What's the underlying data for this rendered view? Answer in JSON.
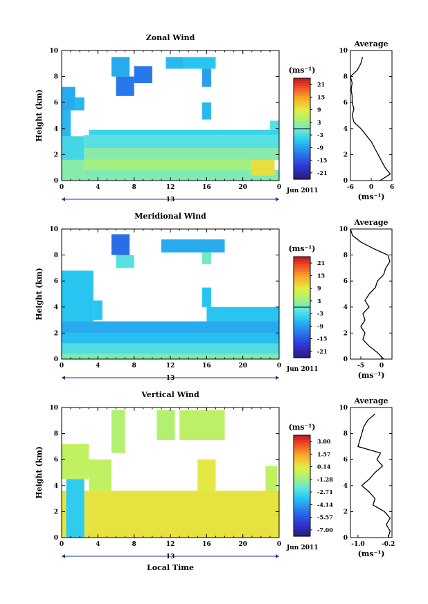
{
  "figure": {
    "date_label": "Jun 2011",
    "day_label": "13",
    "x_title": "Local Time",
    "y_title": "Height (km)",
    "avg_title": "Average",
    "unit_label": "(ms⁻¹)"
  },
  "chart_data": [
    {
      "type": "heatmap",
      "title": "Zonal Wind",
      "xlabel": "",
      "ylabel": "Height (km)",
      "x_ticks": [
        "0",
        "4",
        "8",
        "12",
        "16",
        "20",
        "0"
      ],
      "x_range": [
        0,
        24
      ],
      "y_ticks": [
        "0",
        "2",
        "4",
        "6",
        "8",
        "10"
      ],
      "y_range": [
        0,
        10
      ],
      "colorbar": {
        "label": "(ms⁻¹)",
        "ticks": [
          "21",
          "15",
          "9",
          "3",
          "-3",
          "-9",
          "-15",
          "-21"
        ],
        "range": [
          -24,
          24
        ]
      },
      "regions": [
        {
          "x0": 0.0,
          "x1": 2.5,
          "y0": 0.0,
          "y1": 1.6,
          "v": 1.5
        },
        {
          "x0": 0.0,
          "x1": 2.5,
          "y0": 1.6,
          "y1": 3.4,
          "v": -3.5
        },
        {
          "x0": 0.0,
          "x1": 1.0,
          "y0": 3.4,
          "y1": 5.4,
          "v": -7
        },
        {
          "x0": 0.0,
          "x1": 1.5,
          "y0": 5.4,
          "y1": 7.2,
          "v": -8
        },
        {
          "x0": 1.5,
          "x1": 2.5,
          "y0": 5.4,
          "y1": 6.4,
          "v": -7
        },
        {
          "x0": 2.5,
          "x1": 24.0,
          "y0": 0.0,
          "y1": 0.8,
          "v": 1
        },
        {
          "x0": 2.5,
          "x1": 21.0,
          "y0": 0.8,
          "y1": 1.6,
          "v": 3.5
        },
        {
          "x0": 21.0,
          "x1": 23.5,
          "y0": 0.4,
          "y1": 1.8,
          "v": 10
        },
        {
          "x0": 2.5,
          "x1": 24.0,
          "y0": 1.6,
          "y1": 2.5,
          "v": 1.5
        },
        {
          "x0": 2.5,
          "x1": 24.0,
          "y0": 2.5,
          "y1": 3.5,
          "v": -2
        },
        {
          "x0": 3.0,
          "x1": 24.0,
          "y0": 3.5,
          "y1": 3.9,
          "v": -4
        },
        {
          "x0": 23.0,
          "x1": 24.0,
          "y0": 3.9,
          "y1": 4.6,
          "v": -2
        },
        {
          "x0": 15.5,
          "x1": 16.5,
          "y0": 4.7,
          "y1": 6.0,
          "v": -7
        },
        {
          "x0": 5.5,
          "x1": 7.5,
          "y0": 8.0,
          "y1": 9.5,
          "v": -8
        },
        {
          "x0": 6.0,
          "x1": 8.0,
          "y0": 6.5,
          "y1": 8.0,
          "v": -12
        },
        {
          "x0": 8.0,
          "x1": 10.0,
          "y0": 7.5,
          "y1": 8.8,
          "v": -12
        },
        {
          "x0": 11.5,
          "x1": 13.5,
          "y0": 8.6,
          "y1": 9.5,
          "v": -7
        },
        {
          "x0": 13.5,
          "x1": 17.0,
          "y0": 8.6,
          "y1": 9.5,
          "v": -6
        },
        {
          "x0": 15.5,
          "x1": 16.5,
          "y0": 7.2,
          "y1": 8.6,
          "v": -9
        }
      ],
      "avg_profile": {
        "x_ticks": [
          "-6",
          "0",
          "6"
        ],
        "x_range": [
          -6,
          6
        ],
        "heights": [
          0.0,
          0.5,
          1.0,
          1.5,
          2.0,
          2.5,
          3.0,
          3.5,
          4.0,
          4.5,
          5.0,
          5.5,
          6.0,
          6.5,
          7.0,
          7.5,
          8.0,
          8.5,
          9.0,
          9.5
        ],
        "values": [
          2.5,
          5.5,
          4.0,
          3.0,
          2.0,
          1.0,
          0.0,
          -1.5,
          -3.0,
          -5.0,
          -5.5,
          -5.0,
          -5.5,
          -5.5,
          -5.8,
          -5.5,
          -6.0,
          -4.0,
          -3.0,
          -2.5
        ]
      }
    },
    {
      "type": "heatmap",
      "title": "Meridional Wind",
      "xlabel": "",
      "ylabel": "Height (km)",
      "x_ticks": [
        "0",
        "4",
        "8",
        "12",
        "16",
        "20",
        "0"
      ],
      "x_range": [
        0,
        24
      ],
      "y_ticks": [
        "0",
        "2",
        "4",
        "6",
        "8",
        "10"
      ],
      "y_range": [
        0,
        10
      ],
      "colorbar": {
        "label": "(ms⁻¹)",
        "ticks": [
          "21",
          "15",
          "9",
          "3",
          "-3",
          "-9",
          "-15",
          "-21"
        ],
        "range": [
          -24,
          24
        ]
      },
      "regions": [
        {
          "x0": 0.0,
          "x1": 24.0,
          "y0": 0.0,
          "y1": 0.4,
          "v": 1
        },
        {
          "x0": 0.0,
          "x1": 24.0,
          "y0": 0.4,
          "y1": 1.2,
          "v": -2.5
        },
        {
          "x0": 0.0,
          "x1": 24.0,
          "y0": 1.2,
          "y1": 2.0,
          "v": -6.5
        },
        {
          "x0": 0.0,
          "x1": 24.0,
          "y0": 2.0,
          "y1": 2.9,
          "v": -8
        },
        {
          "x0": 0.0,
          "x1": 3.5,
          "y0": 2.9,
          "y1": 6.8,
          "v": -6
        },
        {
          "x0": 3.5,
          "x1": 4.5,
          "y0": 3.0,
          "y1": 4.5,
          "v": -6
        },
        {
          "x0": 16.0,
          "x1": 24.0,
          "y0": 2.9,
          "y1": 4.0,
          "v": -6
        },
        {
          "x0": 15.5,
          "x1": 16.5,
          "y0": 4.0,
          "y1": 5.5,
          "v": -6
        },
        {
          "x0": 5.5,
          "x1": 7.5,
          "y0": 8.0,
          "y1": 9.6,
          "v": -13
        },
        {
          "x0": 6.0,
          "x1": 8.0,
          "y0": 7.0,
          "y1": 8.0,
          "v": -2
        },
        {
          "x0": 11.0,
          "x1": 18.0,
          "y0": 8.2,
          "y1": 9.2,
          "v": -8
        },
        {
          "x0": 15.5,
          "x1": 16.5,
          "y0": 7.3,
          "y1": 8.2,
          "v": 0
        }
      ],
      "avg_profile": {
        "x_ticks": [
          "-5",
          "0"
        ],
        "x_range": [
          -7.5,
          2.5
        ],
        "heights": [
          0.0,
          0.5,
          1.0,
          1.5,
          2.0,
          2.5,
          3.0,
          3.5,
          4.0,
          4.5,
          5.0,
          5.5,
          6.0,
          6.5,
          7.0,
          7.5,
          8.0,
          8.5,
          9.0,
          9.5,
          10.0
        ],
        "values": [
          0.5,
          -1.0,
          -3.0,
          -4.5,
          -4.0,
          -5.0,
          -4.0,
          -4.5,
          -3.0,
          -4.0,
          -3.0,
          -1.5,
          -1.0,
          0.5,
          1.0,
          2.0,
          1.5,
          -2.0,
          -5.0,
          -7.0,
          -7.5
        ]
      }
    },
    {
      "type": "heatmap",
      "title": "Vertical Wind",
      "xlabel": "Local Time",
      "ylabel": "Height (km)",
      "x_ticks": [
        "0",
        "4",
        "8",
        "12",
        "16",
        "20",
        "0"
      ],
      "x_range": [
        0,
        24
      ],
      "y_ticks": [
        "0",
        "2",
        "4",
        "6",
        "8",
        "10"
      ],
      "y_range": [
        0,
        10
      ],
      "colorbar": {
        "label": "(ms⁻¹)",
        "ticks": [
          "3.00",
          "1.57",
          "0.14",
          "-1.28",
          "-2.71",
          "-4.14",
          "-5.57",
          "-7.00"
        ],
        "range": [
          -7.7,
          3.7
        ]
      },
      "regions": [
        {
          "x0": 0.0,
          "x1": 24.0,
          "y0": 0.0,
          "y1": 3.6,
          "v": 0.3
        },
        {
          "x0": 0.5,
          "x1": 2.5,
          "y0": 0.0,
          "y1": 4.5,
          "v": -3.2
        },
        {
          "x0": 0.0,
          "x1": 3.0,
          "y0": 4.5,
          "y1": 7.2,
          "v": -0.6
        },
        {
          "x0": 3.0,
          "x1": 5.5,
          "y0": 3.6,
          "y1": 6.0,
          "v": -0.6
        },
        {
          "x0": 15.0,
          "x1": 17.0,
          "y0": 3.6,
          "y1": 6.0,
          "v": 0.2
        },
        {
          "x0": 22.5,
          "x1": 23.8,
          "y0": 3.6,
          "y1": 5.5,
          "v": -0.6
        },
        {
          "x0": 5.5,
          "x1": 7.0,
          "y0": 6.5,
          "y1": 9.8,
          "v": -0.9
        },
        {
          "x0": 10.5,
          "x1": 12.5,
          "y0": 7.5,
          "y1": 9.8,
          "v": -0.9
        },
        {
          "x0": 13.0,
          "x1": 18.0,
          "y0": 7.5,
          "y1": 9.8,
          "v": -0.7
        }
      ],
      "avg_profile": {
        "x_ticks": [
          "-1.0",
          "-0.2"
        ],
        "x_range": [
          -1.2,
          -0.1
        ],
        "heights": [
          0.0,
          0.5,
          1.0,
          1.5,
          2.0,
          2.5,
          3.0,
          3.5,
          4.0,
          4.5,
          5.0,
          5.5,
          6.0,
          6.5,
          7.0,
          7.5,
          8.0,
          8.5,
          9.0,
          9.5
        ],
        "values": [
          -0.2,
          -0.15,
          -0.25,
          -0.15,
          -0.3,
          -0.6,
          -0.55,
          -0.7,
          -0.9,
          -0.7,
          -0.55,
          -0.35,
          -0.5,
          -0.4,
          -1.0,
          -0.95,
          -0.9,
          -0.85,
          -0.75,
          -0.55
        ]
      }
    }
  ]
}
